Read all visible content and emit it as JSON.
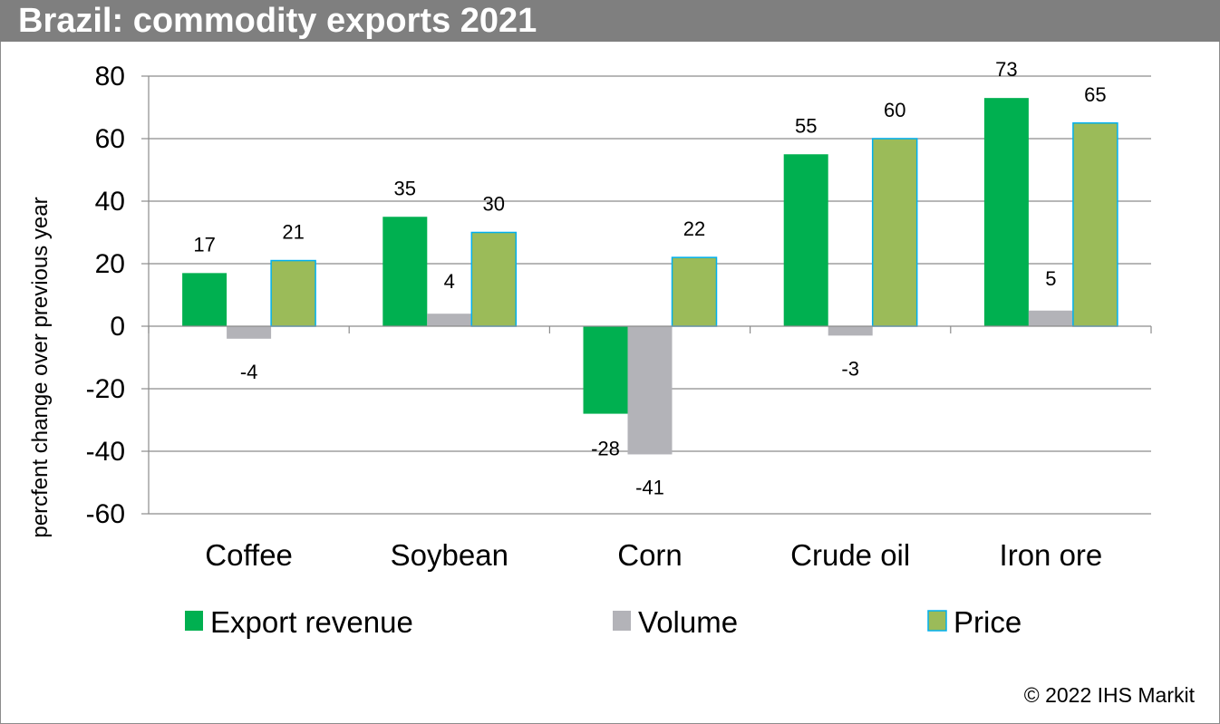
{
  "title": "Brazil: commodity exports 2021",
  "footer": {
    "copyright": "© 2022 IHS Markit"
  },
  "chart_data": {
    "type": "bar",
    "title": "Brazil: commodity exports 2021",
    "xlabel": "",
    "ylabel": "percfent change over previous year",
    "ylim": [
      -60,
      80
    ],
    "yticks": [
      80,
      60,
      40,
      20,
      0,
      -20,
      -40,
      -60
    ],
    "grid": true,
    "legend_position": "bottom",
    "categories": [
      "Coffee",
      "Soybean",
      "Corn",
      "Crude oil",
      "Iron ore"
    ],
    "series": [
      {
        "name": "Export revenue",
        "color": "#00b050",
        "values": [
          17,
          35,
          -28,
          55,
          73
        ],
        "labels": [
          "17",
          "35",
          "-28",
          "55",
          "73"
        ]
      },
      {
        "name": "Volume",
        "color": "#b3b3b8",
        "values": [
          -4,
          4,
          -41,
          -3,
          5
        ],
        "labels": [
          "-4",
          "4",
          "-41",
          "-3",
          "5"
        ]
      },
      {
        "name": "Price",
        "color": "#9bbb59",
        "border": "#00b0f0",
        "values": [
          21,
          30,
          22,
          60,
          65
        ],
        "labels": [
          "21",
          "30",
          "22",
          "60",
          "65"
        ]
      }
    ]
  }
}
